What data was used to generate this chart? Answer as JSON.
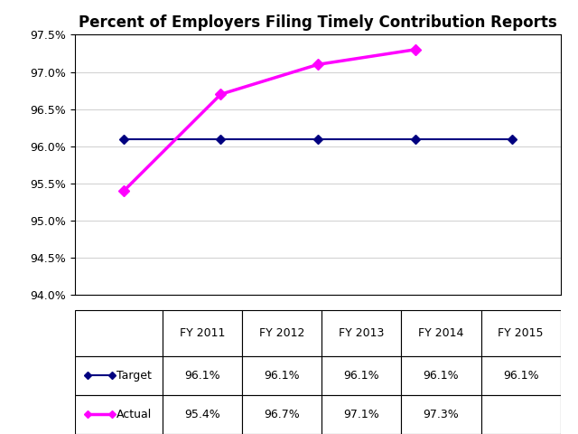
{
  "title": "Percent of Employers Filing Timely Contribution Reports",
  "x_labels": [
    "FY 2011",
    "FY 2012",
    "FY 2013",
    "FY 2014",
    "FY 2015"
  ],
  "target_values": [
    96.1,
    96.1,
    96.1,
    96.1,
    96.1
  ],
  "actual_values": [
    95.4,
    96.7,
    97.1,
    97.3,
    null
  ],
  "target_color": "#000080",
  "actual_color": "#FF00FF",
  "ylim_min": 94.0,
  "ylim_max": 97.5,
  "ytick_step": 0.5,
  "table_target_labels": [
    "96.1%",
    "96.1%",
    "96.1%",
    "96.1%",
    "96.1%"
  ],
  "table_actual_labels": [
    "95.4%",
    "96.7%",
    "97.1%",
    "97.3%",
    ""
  ],
  "background_color": "#ffffff",
  "title_fontsize": 12,
  "tick_fontsize": 9,
  "table_fontsize": 9
}
